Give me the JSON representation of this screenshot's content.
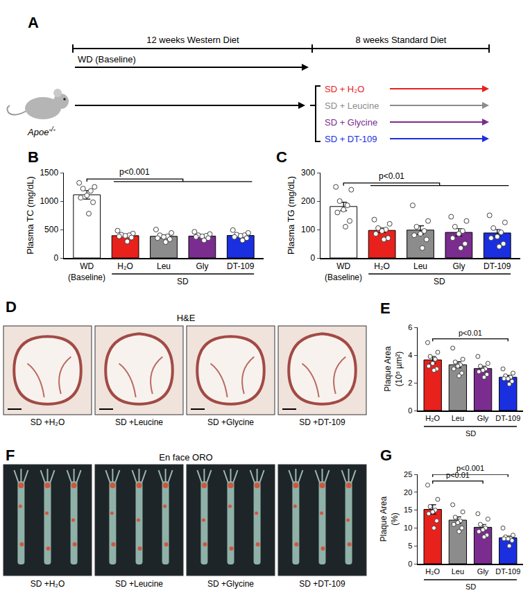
{
  "diagram": {
    "panel": "A",
    "phases": [
      "12 weeks Western Diet",
      "8 weeks Standard Diet"
    ],
    "baseline_arm": "WD (Baseline)",
    "mouse": {
      "text": "Apoe",
      "superscript": "-/-"
    },
    "arms": [
      {
        "label": "SD + H₂O",
        "color": "#e8211d"
      },
      {
        "label": "SD + Leucine",
        "color": "#8c8c8c"
      },
      {
        "label": "SD + Glycine",
        "color": "#7b2c8f"
      },
      {
        "label": "SD + DT-109",
        "color": "#1a2fe0"
      }
    ]
  },
  "chart_data": [
    {
      "panel": "B",
      "type": "bar",
      "y_label": "Plasma TC (mg/dL)",
      "categories": [
        "WD",
        "H₂O",
        "Leu",
        "Gly",
        "DT-109"
      ],
      "values": [
        1111,
        392,
        381,
        385,
        395
      ],
      "errors": [
        75,
        20,
        25,
        20,
        22
      ],
      "points": [
        [
          1320,
          1250,
          1220,
          1180,
          1100,
          1060,
          980,
          780
        ],
        [
          480,
          430,
          410,
          400,
          390,
          380,
          360,
          290
        ],
        [
          500,
          440,
          400,
          380,
          370,
          350,
          330,
          280
        ],
        [
          460,
          420,
          400,
          390,
          380,
          370,
          350,
          310
        ],
        [
          490,
          440,
          410,
          400,
          390,
          370,
          350,
          310
        ]
      ],
      "colors": [
        "#ffffff",
        "#e8211d",
        "#8c8c8c",
        "#7b2c8f",
        "#1a2fe0"
      ],
      "ylim": [
        0,
        1500
      ],
      "yticks": [
        0,
        500,
        1000,
        1500
      ],
      "grid": false,
      "groups": [
        {
          "label": "(Baseline)",
          "categories": [
            "WD"
          ]
        },
        {
          "label": "SD",
          "categories": [
            "H₂O",
            "Leu",
            "Gly",
            "DT-109"
          ]
        }
      ],
      "significance": [
        {
          "from": "WD",
          "to": [
            "H₂O",
            "Leu",
            "Gly",
            "DT-109"
          ],
          "text": "p<0.001"
        }
      ]
    },
    {
      "panel": "C",
      "type": "bar",
      "y_label": "Plasma TG (mg/dL)",
      "categories": [
        "WD",
        "H₂O",
        "Leu",
        "Gly",
        "DT-109"
      ],
      "values": [
        181,
        97,
        98,
        90,
        88
      ],
      "errors": [
        15,
        8,
        15,
        13,
        12
      ],
      "points": [
        [
          250,
          240,
          200,
          185,
          170,
          160,
          130,
          110
        ],
        [
          135,
          120,
          105,
          100,
          95,
          85,
          70,
          65
        ],
        [
          185,
          130,
          110,
          95,
          85,
          80,
          65,
          35
        ],
        [
          145,
          130,
          110,
          95,
          85,
          70,
          50,
          35
        ],
        [
          150,
          125,
          105,
          90,
          75,
          70,
          50,
          40
        ]
      ],
      "colors": [
        "#ffffff",
        "#e8211d",
        "#8c8c8c",
        "#7b2c8f",
        "#1a2fe0"
      ],
      "ylim": [
        0,
        300
      ],
      "yticks": [
        0,
        100,
        200,
        300
      ],
      "grid": false,
      "groups": [
        {
          "label": "(Baseline)",
          "categories": [
            "WD"
          ]
        },
        {
          "label": "SD",
          "categories": [
            "H₂O",
            "Leu",
            "Gly",
            "DT-109"
          ]
        }
      ],
      "significance": [
        {
          "from": "WD",
          "to": [
            "H₂O",
            "Leu",
            "Gly",
            "DT-109"
          ],
          "text": "p<0.01"
        }
      ]
    },
    {
      "panel": "E",
      "type": "bar",
      "y_label": "Plaque Area (10⁵ µm²)",
      "categories": [
        "H₂O",
        "Leu",
        "Gly",
        "DT-109"
      ],
      "values": [
        3.65,
        3.3,
        3.03,
        2.4
      ],
      "errors": [
        0.25,
        0.22,
        0.17,
        0.13
      ],
      "points": [
        [
          4.9,
          4.2,
          3.9,
          3.7,
          3.4,
          3.2,
          3.0,
          2.9
        ],
        [
          4.5,
          3.7,
          3.5,
          3.3,
          3.2,
          3.0,
          2.7,
          2.5
        ],
        [
          3.9,
          3.4,
          3.2,
          3.0,
          2.9,
          2.8,
          2.6,
          2.4
        ],
        [
          3.0,
          2.7,
          2.5,
          2.4,
          2.3,
          2.3,
          2.1,
          1.9
        ]
      ],
      "colors": [
        "#e8211d",
        "#8c8c8c",
        "#7b2c8f",
        "#1a2fe0"
      ],
      "ylim": [
        0,
        6
      ],
      "yticks": [
        0,
        2,
        4,
        6
      ],
      "grid": false,
      "groups": [
        {
          "label": "SD",
          "categories": [
            "H₂O",
            "Leu",
            "Gly",
            "DT-109"
          ]
        }
      ],
      "significance": [
        {
          "from": "H₂O",
          "to": [
            "DT-109"
          ],
          "text": "p<0.01"
        }
      ]
    },
    {
      "panel": "G",
      "type": "bar",
      "y_label": "Plaque Area (%)",
      "categories": [
        "H₂O",
        "Leu",
        "Gly",
        "DT-109"
      ],
      "values": [
        15.2,
        12.2,
        10.2,
        7.25
      ],
      "errors": [
        1.3,
        0.9,
        0.8,
        0.5
      ],
      "points": [
        [
          22,
          18,
          16,
          15,
          14.5,
          14,
          12,
          10
        ],
        [
          16.5,
          14.5,
          13,
          12,
          11.5,
          11,
          10,
          9
        ],
        [
          14,
          12.5,
          11,
          10,
          9.5,
          9,
          8,
          7.5
        ],
        [
          10,
          8,
          7.5,
          7,
          7,
          7,
          6.5,
          5
        ]
      ],
      "colors": [
        "#e8211d",
        "#8c8c8c",
        "#7b2c8f",
        "#1a2fe0"
      ],
      "ylim": [
        0,
        25
      ],
      "yticks": [
        0,
        5,
        10,
        15,
        20,
        25
      ],
      "grid": false,
      "groups": [
        {
          "label": "SD",
          "categories": [
            "H₂O",
            "Leu",
            "Gly",
            "DT-109"
          ]
        }
      ],
      "significance": [
        {
          "from": "H₂O",
          "to": [
            "Gly"
          ],
          "text": "p<0.01"
        },
        {
          "from": "H₂O",
          "to": [
            "DT-109"
          ],
          "text": "p<0.001"
        }
      ]
    }
  ],
  "images": [
    {
      "panel": "D",
      "title": "H&E",
      "captions": [
        "SD +H₂O",
        "SD +Leucine",
        "SD +Glycine",
        "SD +DT-109"
      ]
    },
    {
      "panel": "F",
      "title": "En face ORO",
      "captions": [
        "SD +H₂O",
        "SD +Leucine",
        "SD +Glycine",
        "SD +DT-109"
      ]
    }
  ]
}
